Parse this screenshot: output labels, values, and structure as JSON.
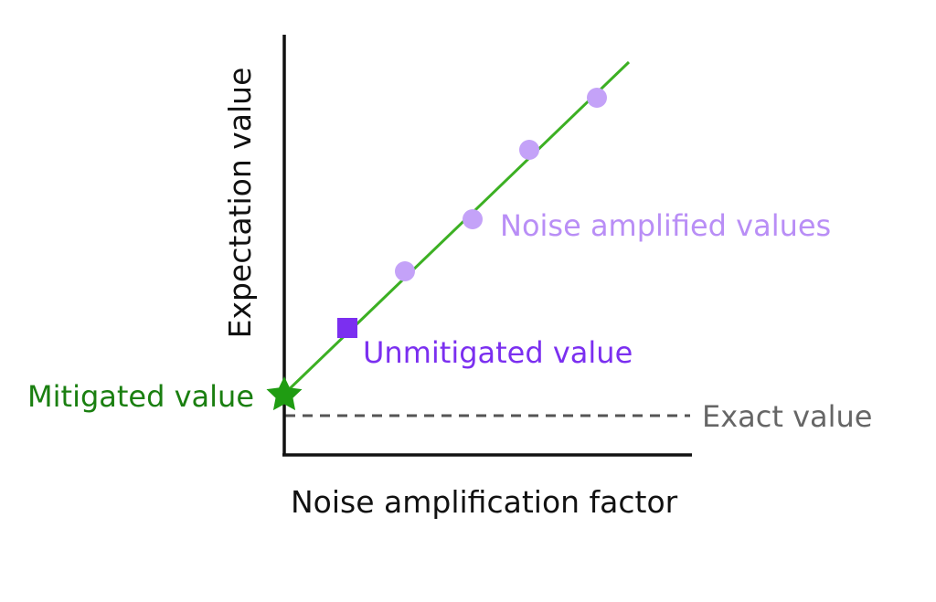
{
  "diagram": {
    "y_axis_label": "Expectation value",
    "x_axis_label": "Noise amplification factor",
    "labels": {
      "noise_amplified": "Noise amplified values",
      "unmitigated": "Unmitigated value",
      "mitigated": "Mitigated value",
      "exact": "Exact value"
    },
    "colors": {
      "axes": "#111111",
      "fit_line": "#3cb023",
      "noise_points": "#c4a2f8",
      "noise_label": "#b98ef6",
      "unmitigated": "#7b2ff0",
      "mitigated": "#1f9c12",
      "mitigated_label": "#1a7f10",
      "exact_line": "#555555",
      "exact_label": "#666666"
    },
    "markers": {
      "noise_amplified": "circle",
      "unmitigated": "square",
      "mitigated": "star"
    }
  }
}
